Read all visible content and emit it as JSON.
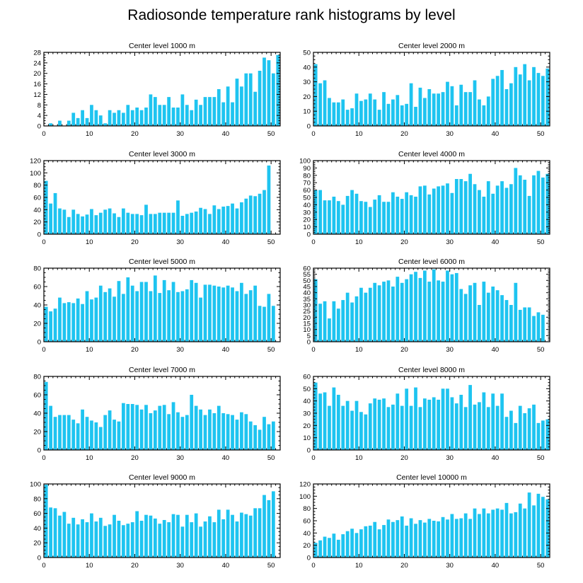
{
  "title": "Radiosonde temperature rank histograms by level",
  "colors": {
    "bar": "#1ec4f0",
    "axis": "#000000",
    "background": "#ffffff"
  },
  "chart_data": [
    {
      "type": "bar",
      "title": "Center level 1000 m",
      "x": [
        0,
        1,
        2,
        3,
        4,
        5,
        6,
        7,
        8,
        9,
        10,
        11,
        12,
        13,
        14,
        15,
        16,
        17,
        18,
        19,
        20,
        21,
        22,
        23,
        24,
        25,
        26,
        27,
        28,
        29,
        30,
        31,
        32,
        33,
        34,
        35,
        36,
        37,
        38,
        39,
        40,
        41,
        42,
        43,
        44,
        45,
        46,
        47,
        48,
        49,
        50,
        51
      ],
      "values": [
        0,
        1,
        0,
        2,
        0,
        2,
        5,
        3,
        6,
        3,
        8,
        6,
        4,
        1,
        6,
        5,
        6,
        5,
        8,
        6,
        7,
        6,
        7,
        12,
        11,
        8,
        8,
        11,
        7,
        7,
        12,
        8,
        6,
        10,
        8,
        11,
        11,
        11,
        14,
        9,
        15,
        9,
        18,
        15,
        20,
        20,
        13,
        21,
        26,
        25,
        20,
        27
      ],
      "xticks": [
        0,
        10,
        20,
        30,
        40,
        50
      ],
      "xlim": [
        0,
        52
      ],
      "yticks": [
        0,
        4,
        8,
        12,
        16,
        20,
        24,
        28
      ],
      "ylim": [
        0,
        28
      ],
      "xlabel": "",
      "ylabel": ""
    },
    {
      "type": "bar",
      "title": "Center level 2000 m",
      "x": [
        0,
        1,
        2,
        3,
        4,
        5,
        6,
        7,
        8,
        9,
        10,
        11,
        12,
        13,
        14,
        15,
        16,
        17,
        18,
        19,
        20,
        21,
        22,
        23,
        24,
        25,
        26,
        27,
        28,
        29,
        30,
        31,
        32,
        33,
        34,
        35,
        36,
        37,
        38,
        39,
        40,
        41,
        42,
        43,
        44,
        45,
        46,
        47,
        48,
        49,
        50,
        51
      ],
      "values": [
        42,
        29,
        31,
        19,
        16,
        16,
        18,
        11,
        12,
        22,
        17,
        18,
        22,
        18,
        11,
        23,
        15,
        18,
        21,
        14,
        15,
        29,
        13,
        26,
        19,
        25,
        22,
        22,
        23,
        30,
        27,
        14,
        28,
        23,
        23,
        31,
        18,
        14,
        20,
        32,
        34,
        38,
        25,
        29,
        40,
        35,
        42,
        31,
        40,
        36,
        34,
        39
      ],
      "xticks": [
        0,
        10,
        20,
        30,
        40,
        50
      ],
      "xlim": [
        0,
        52
      ],
      "yticks": [
        0,
        10,
        20,
        30,
        40,
        50
      ],
      "ylim": [
        0,
        50
      ],
      "xlabel": "",
      "ylabel": ""
    },
    {
      "type": "bar",
      "title": "Center level 3000 m",
      "x": [
        0,
        1,
        2,
        3,
        4,
        5,
        6,
        7,
        8,
        9,
        10,
        11,
        12,
        13,
        14,
        15,
        16,
        17,
        18,
        19,
        20,
        21,
        22,
        23,
        24,
        25,
        26,
        27,
        28,
        29,
        30,
        31,
        32,
        33,
        34,
        35,
        36,
        37,
        38,
        39,
        40,
        41,
        42,
        43,
        44,
        45,
        46,
        47,
        48,
        49,
        50,
        51
      ],
      "values": [
        87,
        50,
        67,
        42,
        40,
        28,
        40,
        33,
        29,
        32,
        41,
        31,
        35,
        40,
        42,
        34,
        28,
        42,
        35,
        33,
        33,
        31,
        48,
        33,
        33,
        35,
        35,
        35,
        35,
        55,
        30,
        33,
        35,
        37,
        43,
        41,
        33,
        47,
        41,
        45,
        46,
        50,
        42,
        52,
        58,
        63,
        62,
        66,
        72,
        112,
        0,
        0
      ],
      "xticks": [
        0,
        10,
        20,
        30,
        40,
        50
      ],
      "xlim": [
        0,
        52
      ],
      "yticks": [
        0,
        20,
        40,
        60,
        80,
        100,
        120
      ],
      "ylim": [
        0,
        120
      ],
      "xlabel": "",
      "ylabel": ""
    },
    {
      "type": "bar",
      "title": "Center level 4000 m",
      "x": [
        0,
        1,
        2,
        3,
        4,
        5,
        6,
        7,
        8,
        9,
        10,
        11,
        12,
        13,
        14,
        15,
        16,
        17,
        18,
        19,
        20,
        21,
        22,
        23,
        24,
        25,
        26,
        27,
        28,
        29,
        30,
        31,
        32,
        33,
        34,
        35,
        36,
        37,
        38,
        39,
        40,
        41,
        42,
        43,
        44,
        45,
        46,
        47,
        48,
        49,
        50,
        51
      ],
      "values": [
        60,
        60,
        46,
        46,
        51,
        45,
        40,
        52,
        60,
        55,
        45,
        44,
        37,
        47,
        53,
        44,
        44,
        57,
        51,
        48,
        57,
        53,
        51,
        65,
        66,
        54,
        62,
        65,
        66,
        69,
        56,
        75,
        75,
        72,
        82,
        68,
        60,
        51,
        72,
        55,
        66,
        72,
        63,
        68,
        90,
        80,
        74,
        52,
        80,
        86,
        77,
        82
      ],
      "xticks": [
        0,
        10,
        20,
        30,
        40,
        50
      ],
      "xlim": [
        0,
        52
      ],
      "yticks": [
        0,
        10,
        20,
        30,
        40,
        50,
        60,
        70,
        80,
        90,
        100
      ],
      "ylim": [
        0,
        100
      ],
      "xlabel": "",
      "ylabel": ""
    },
    {
      "type": "bar",
      "title": "Center level 5000 m",
      "x": [
        0,
        1,
        2,
        3,
        4,
        5,
        6,
        7,
        8,
        9,
        10,
        11,
        12,
        13,
        14,
        15,
        16,
        17,
        18,
        19,
        20,
        21,
        22,
        23,
        24,
        25,
        26,
        27,
        28,
        29,
        30,
        31,
        32,
        33,
        34,
        35,
        36,
        37,
        38,
        39,
        40,
        41,
        42,
        43,
        44,
        45,
        46,
        47,
        48,
        49,
        50,
        51
      ],
      "values": [
        38,
        33,
        36,
        48,
        42,
        43,
        42,
        47,
        41,
        55,
        46,
        48,
        61,
        54,
        58,
        49,
        66,
        52,
        70,
        61,
        55,
        65,
        65,
        55,
        72,
        53,
        67,
        56,
        65,
        54,
        55,
        57,
        67,
        64,
        48,
        62,
        62,
        61,
        60,
        59,
        61,
        59,
        55,
        64,
        52,
        56,
        61,
        39,
        38,
        52,
        39,
        0
      ],
      "xticks": [
        0,
        10,
        20,
        30,
        40,
        50
      ],
      "xlim": [
        0,
        52
      ],
      "yticks": [
        0,
        20,
        40,
        60,
        80
      ],
      "ylim": [
        0,
        80
      ],
      "xlabel": "",
      "ylabel": ""
    },
    {
      "type": "bar",
      "title": "Center level 6000 m",
      "x": [
        0,
        1,
        2,
        3,
        4,
        5,
        6,
        7,
        8,
        9,
        10,
        11,
        12,
        13,
        14,
        15,
        16,
        17,
        18,
        19,
        20,
        21,
        22,
        23,
        24,
        25,
        26,
        27,
        28,
        29,
        30,
        31,
        32,
        33,
        34,
        35,
        36,
        37,
        38,
        39,
        40,
        41,
        42,
        43,
        44,
        45,
        46,
        47,
        48,
        49,
        50,
        51
      ],
      "values": [
        51,
        31,
        33,
        19,
        33,
        27,
        34,
        40,
        32,
        37,
        44,
        40,
        44,
        48,
        46,
        49,
        50,
        45,
        53,
        48,
        51,
        55,
        57,
        52,
        58,
        49,
        59,
        50,
        49,
        58,
        55,
        56,
        43,
        39,
        46,
        48,
        30,
        49,
        40,
        45,
        42,
        38,
        34,
        30,
        48,
        26,
        28,
        28,
        21,
        24,
        22,
        0
      ],
      "xticks": [
        0,
        10,
        20,
        30,
        40,
        50
      ],
      "xlim": [
        0,
        52
      ],
      "yticks": [
        0,
        5,
        10,
        15,
        20,
        25,
        30,
        35,
        40,
        45,
        50,
        55,
        60
      ],
      "ylim": [
        0,
        60
      ],
      "xlabel": "",
      "ylabel": ""
    },
    {
      "type": "bar",
      "title": "Center level 7000 m",
      "x": [
        0,
        1,
        2,
        3,
        4,
        5,
        6,
        7,
        8,
        9,
        10,
        11,
        12,
        13,
        14,
        15,
        16,
        17,
        18,
        19,
        20,
        21,
        22,
        23,
        24,
        25,
        26,
        27,
        28,
        29,
        30,
        31,
        32,
        33,
        34,
        35,
        36,
        37,
        38,
        39,
        40,
        41,
        42,
        43,
        44,
        45,
        46,
        47,
        48,
        49,
        50,
        51
      ],
      "values": [
        74,
        48,
        36,
        38,
        38,
        38,
        33,
        29,
        44,
        36,
        32,
        30,
        25,
        38,
        43,
        33,
        31,
        51,
        50,
        50,
        49,
        44,
        49,
        40,
        43,
        48,
        49,
        39,
        52,
        41,
        36,
        38,
        60,
        48,
        44,
        38,
        44,
        40,
        48,
        40,
        39,
        38,
        33,
        41,
        39,
        31,
        27,
        22,
        36,
        28,
        31,
        0
      ],
      "xticks": [
        0,
        10,
        20,
        30,
        40,
        50
      ],
      "xlim": [
        0,
        52
      ],
      "yticks": [
        0,
        20,
        40,
        60,
        80
      ],
      "ylim": [
        0,
        80
      ],
      "xlabel": "",
      "ylabel": ""
    },
    {
      "type": "bar",
      "title": "Center level 8000 m",
      "x": [
        0,
        1,
        2,
        3,
        4,
        5,
        6,
        7,
        8,
        9,
        10,
        11,
        12,
        13,
        14,
        15,
        16,
        17,
        18,
        19,
        20,
        21,
        22,
        23,
        24,
        25,
        26,
        27,
        28,
        29,
        30,
        31,
        32,
        33,
        34,
        35,
        36,
        37,
        38,
        39,
        40,
        41,
        42,
        43,
        44,
        45,
        46,
        47,
        48,
        49,
        50,
        51
      ],
      "values": [
        55,
        46,
        47,
        36,
        51,
        45,
        36,
        40,
        32,
        40,
        31,
        29,
        38,
        42,
        41,
        42,
        35,
        37,
        46,
        36,
        50,
        36,
        51,
        35,
        42,
        41,
        43,
        41,
        50,
        50,
        43,
        38,
        45,
        35,
        53,
        37,
        39,
        47,
        35,
        46,
        36,
        46,
        27,
        32,
        22,
        36,
        30,
        34,
        37,
        22,
        24,
        25
      ],
      "xticks": [
        0,
        10,
        20,
        30,
        40,
        50
      ],
      "xlim": [
        0,
        52
      ],
      "yticks": [
        0,
        10,
        20,
        30,
        40,
        50,
        60
      ],
      "ylim": [
        0,
        60
      ],
      "xlabel": "",
      "ylabel": ""
    },
    {
      "type": "bar",
      "title": "Center level 9000 m",
      "x": [
        0,
        1,
        2,
        3,
        4,
        5,
        6,
        7,
        8,
        9,
        10,
        11,
        12,
        13,
        14,
        15,
        16,
        17,
        18,
        19,
        20,
        21,
        22,
        23,
        24,
        25,
        26,
        27,
        28,
        29,
        30,
        31,
        32,
        33,
        34,
        35,
        36,
        37,
        38,
        39,
        40,
        41,
        42,
        43,
        44,
        45,
        46,
        47,
        48,
        49,
        50,
        51
      ],
      "values": [
        99,
        68,
        67,
        57,
        62,
        46,
        54,
        45,
        52,
        48,
        60,
        49,
        54,
        43,
        45,
        58,
        50,
        44,
        46,
        48,
        63,
        50,
        58,
        57,
        53,
        46,
        51,
        48,
        59,
        58,
        42,
        58,
        48,
        60,
        42,
        49,
        56,
        48,
        65,
        52,
        65,
        58,
        49,
        61,
        59,
        57,
        67,
        67,
        85,
        78,
        90,
        0
      ],
      "xticks": [
        0,
        10,
        20,
        30,
        40,
        50
      ],
      "xlim": [
        0,
        52
      ],
      "yticks": [
        0,
        20,
        40,
        60,
        80,
        100
      ],
      "ylim": [
        0,
        100
      ],
      "xlabel": "",
      "ylabel": ""
    },
    {
      "type": "bar",
      "title": "Center level 10000 m",
      "x": [
        0,
        1,
        2,
        3,
        4,
        5,
        6,
        7,
        8,
        9,
        10,
        11,
        12,
        13,
        14,
        15,
        16,
        17,
        18,
        19,
        20,
        21,
        22,
        23,
        24,
        25,
        26,
        27,
        28,
        29,
        30,
        31,
        32,
        33,
        34,
        35,
        36,
        37,
        38,
        39,
        40,
        41,
        42,
        43,
        44,
        45,
        46,
        47,
        48,
        49,
        50,
        51
      ],
      "values": [
        24,
        28,
        34,
        32,
        39,
        29,
        38,
        43,
        47,
        40,
        46,
        51,
        52,
        58,
        46,
        53,
        62,
        58,
        61,
        67,
        52,
        64,
        55,
        61,
        57,
        63,
        60,
        59,
        66,
        62,
        71,
        63,
        64,
        72,
        63,
        80,
        71,
        80,
        72,
        78,
        80,
        78,
        89,
        72,
        74,
        88,
        80,
        106,
        85,
        104,
        99,
        95
      ],
      "xticks": [
        0,
        10,
        20,
        30,
        40,
        50
      ],
      "xlim": [
        0,
        52
      ],
      "yticks": [
        0,
        20,
        40,
        60,
        80,
        100,
        120
      ],
      "ylim": [
        0,
        120
      ],
      "xlabel": "",
      "ylabel": ""
    }
  ]
}
